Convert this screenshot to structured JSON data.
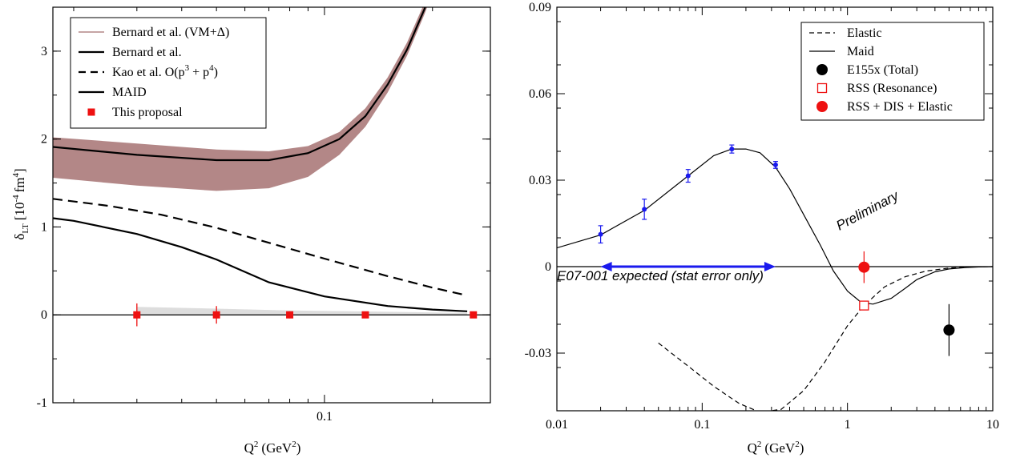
{
  "chart_data": [
    {
      "type": "line",
      "xlabel": "Q",
      "xlabel_sup": "2",
      "xlabel_unit": "(GeV",
      "xlabel_unit_sup": "2",
      "xlabel_close": ")",
      "ylabel": "δ",
      "ylabel_sub": "LT",
      "ylabel_unit": "[10",
      "ylabel_unit_sup": "-4",
      "ylabel_unit2": "fm",
      "ylabel_unit2_sup": "4",
      "ylabel_close": "]",
      "x_scale": "log",
      "xlim": [
        0.0175,
        0.29
      ],
      "ylim": [
        -1,
        3.5
      ],
      "x_ticks": [
        {
          "value": 0.1,
          "label": "0.1"
        }
      ],
      "y_ticks": [
        {
          "value": -1,
          "label": "-1"
        },
        {
          "value": 0,
          "label": "0"
        },
        {
          "value": 1,
          "label": "1"
        },
        {
          "value": 2,
          "label": "2"
        },
        {
          "value": 3,
          "label": "3"
        }
      ],
      "legend_position": "top-left",
      "legend": [
        {
          "label": "Bernard et al. (VM+Δ)",
          "style": "band",
          "color": "#b38787"
        },
        {
          "label": "Bernard et al.",
          "style": "solid"
        },
        {
          "label": "Kao et al. O(p",
          "sup1": "3",
          "mid": " + p",
          "sup2": "4",
          "end": ")",
          "style": "dashed"
        },
        {
          "label": "MAID",
          "style": "solid"
        },
        {
          "label": "This proposal",
          "style": "square",
          "color": "#ee1111"
        }
      ],
      "band": {
        "name": "Bernard et al. (VM+Δ)",
        "x": [
          0.0175,
          0.03,
          0.05,
          0.07,
          0.09,
          0.11,
          0.13,
          0.15,
          0.17,
          0.19,
          0.21
        ],
        "upper": [
          2.02,
          1.95,
          1.88,
          1.86,
          1.92,
          2.08,
          2.35,
          2.7,
          3.1,
          3.55,
          4.05
        ],
        "lower": [
          1.56,
          1.47,
          1.41,
          1.44,
          1.57,
          1.82,
          2.14,
          2.53,
          2.95,
          3.42,
          3.9
        ],
        "color": "#b38787"
      },
      "series": [
        {
          "name": "Bernard et al.",
          "style": "solid",
          "x": [
            0.0175,
            0.03,
            0.05,
            0.07,
            0.09,
            0.11,
            0.13,
            0.15,
            0.17,
            0.19,
            0.21
          ],
          "y": [
            1.91,
            1.82,
            1.76,
            1.76,
            1.84,
            2.0,
            2.26,
            2.62,
            3.02,
            3.48,
            4.0
          ]
        },
        {
          "name": "Kao et al. O(p3 + p4)",
          "style": "dashed",
          "x": [
            0.0175,
            0.025,
            0.035,
            0.05,
            0.07,
            0.1,
            0.15,
            0.2,
            0.25
          ],
          "y": [
            1.32,
            1.24,
            1.14,
            0.99,
            0.82,
            0.64,
            0.44,
            0.31,
            0.22
          ]
        },
        {
          "name": "MAID",
          "style": "solid",
          "x": [
            0.0175,
            0.02,
            0.03,
            0.04,
            0.05,
            0.07,
            0.1,
            0.15,
            0.2,
            0.25
          ],
          "y": [
            1.1,
            1.07,
            0.92,
            0.77,
            0.63,
            0.37,
            0.21,
            0.1,
            0.06,
            0.04
          ]
        }
      ],
      "shade": {
        "x": [
          0.03,
          0.05,
          0.08,
          0.12,
          0.18,
          0.25
        ],
        "upper": [
          0.09,
          0.07,
          0.05,
          0.04,
          0.03,
          0.02
        ],
        "lower": [
          0.0,
          0.0,
          0.0,
          0.0,
          0.0,
          0.0
        ],
        "color": "#dddddd"
      },
      "points": {
        "name": "This proposal",
        "color": "#ee1111",
        "x": [
          0.03,
          0.05,
          0.08,
          0.13,
          0.26
        ],
        "y": [
          0,
          0,
          0,
          0,
          0
        ],
        "err": [
          0.13,
          0.1,
          0.04,
          0.02,
          0.015
        ]
      }
    },
    {
      "type": "line",
      "xlabel": "Q",
      "xlabel_sup": "2",
      "xlabel_unit": "(GeV",
      "xlabel_unit_sup": "2",
      "xlabel_close": ")",
      "x_scale": "log",
      "xlim": [
        0.01,
        10
      ],
      "ylim": [
        -0.05,
        0.09
      ],
      "x_ticks": [
        {
          "value": 0.01,
          "label": "0.01"
        },
        {
          "value": 0.1,
          "label": "0.1"
        },
        {
          "value": 1,
          "label": "1"
        },
        {
          "value": 10,
          "label": "10"
        }
      ],
      "y_ticks": [
        {
          "value": -0.03,
          "label": "-0.03"
        },
        {
          "value": 0,
          "label": "0"
        },
        {
          "value": 0.03,
          "label": "0.03"
        },
        {
          "value": 0.06,
          "label": "0.06"
        },
        {
          "value": 0.09,
          "label": "0.09"
        }
      ],
      "legend_position": "top-right",
      "legend": [
        {
          "label": "Elastic",
          "style": "dashed"
        },
        {
          "label": "Maid",
          "style": "solid"
        },
        {
          "label": "E155x (Total)",
          "style": "circle",
          "color": "#000000"
        },
        {
          "label": "RSS  (Resonance)",
          "style": "open-square",
          "color": "#ee1111"
        },
        {
          "label": "RSS + DIS + Elastic",
          "style": "circle",
          "color": "#ee1111"
        }
      ],
      "series": [
        {
          "name": "Elastic",
          "style": "dashed",
          "x": [
            0.05,
            0.08,
            0.12,
            0.18,
            0.25,
            0.35,
            0.5,
            0.7,
            1.0,
            1.3,
            1.8,
            2.5,
            3.5,
            5,
            7,
            10
          ],
          "y": [
            -0.0265,
            -0.0345,
            -0.0415,
            -0.0475,
            -0.0505,
            -0.0495,
            -0.043,
            -0.033,
            -0.0205,
            -0.0135,
            -0.007,
            -0.0035,
            -0.0015,
            -0.0005,
            -0.0001,
            0
          ]
        },
        {
          "name": "Maid",
          "style": "solid",
          "x": [
            0.01,
            0.02,
            0.04,
            0.08,
            0.12,
            0.16,
            0.2,
            0.25,
            0.32,
            0.4,
            0.5,
            0.65,
            0.8,
            1.0,
            1.25,
            1.5,
            2.0,
            2.5,
            3.0,
            4.0,
            5.0,
            6.5,
            8,
            10
          ],
          "y": [
            0.0065,
            0.011,
            0.0195,
            0.0315,
            0.0385,
            0.0408,
            0.0408,
            0.0395,
            0.0345,
            0.027,
            0.018,
            0.0075,
            -0.0015,
            -0.0085,
            -0.0125,
            -0.013,
            -0.011,
            -0.0075,
            -0.0045,
            -0.0018,
            -0.0008,
            -0.0003,
            -0.0001,
            0
          ]
        }
      ],
      "points": [
        {
          "name": "E07-001 data",
          "color": "#1a1aee",
          "x": [
            0.02,
            0.04,
            0.08,
            0.16,
            0.32
          ],
          "y": [
            0.0112,
            0.0199,
            0.0315,
            0.0408,
            0.0353
          ],
          "err": [
            0.003,
            0.0035,
            0.0022,
            0.0014,
            0.0012
          ]
        },
        {
          "name": "E155x (Total)",
          "color": "#000000",
          "x": [
            5.0
          ],
          "y": [
            -0.022
          ],
          "err": [
            0.009
          ]
        },
        {
          "name": "RSS  (Resonance)",
          "color": "#ee1111",
          "marker": "open-square",
          "x": [
            1.3
          ],
          "y": [
            -0.0135
          ],
          "err": [
            0.0
          ]
        },
        {
          "name": "RSS + DIS + Elastic",
          "color": "#ee1111",
          "x": [
            1.3
          ],
          "y": [
            -0.0002
          ],
          "err": [
            0.0055
          ]
        }
      ],
      "arrow": {
        "x": [
          0.02,
          0.32
        ],
        "y": 0,
        "color": "#1a1aee"
      },
      "annotations": [
        {
          "text": "Preliminary",
          "color": "#ee1111"
        },
        {
          "text": "E07-001 expected (stat error only)",
          "color": "#1a1aee"
        }
      ]
    }
  ]
}
